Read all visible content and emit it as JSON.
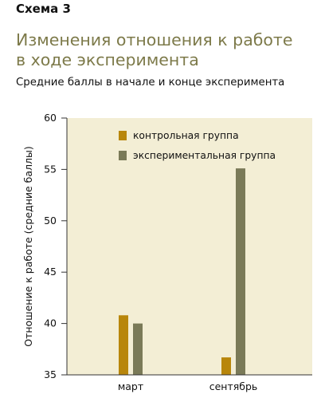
{
  "header": {
    "scheme_label": "Схема 3",
    "title_line1": "Изменения отношения к работе",
    "title_line2": "в ходе эксперимента",
    "subtitle": "Средние баллы в начале и конце эксперимента"
  },
  "colors": {
    "panel": "#f3eed5",
    "control": "#b8860b",
    "experimental": "#7a7a58",
    "axis": "#333333",
    "title": "#7d7a4a"
  },
  "chart_data": {
    "type": "bar",
    "categories": [
      "март",
      "сентябрь"
    ],
    "series": [
      {
        "name": "контрольная группа",
        "values": [
          40.8,
          36.7
        ]
      },
      {
        "name": "экспериментальная группа",
        "values": [
          40.0,
          55.1
        ]
      }
    ],
    "ylabel": "Отношение к работе (средние баллы)",
    "ylim": [
      35,
      60
    ],
    "yticks": [
      "35",
      "40",
      "45",
      "50",
      "55",
      "60"
    ],
    "legend_position": "top-center",
    "grid": false
  }
}
